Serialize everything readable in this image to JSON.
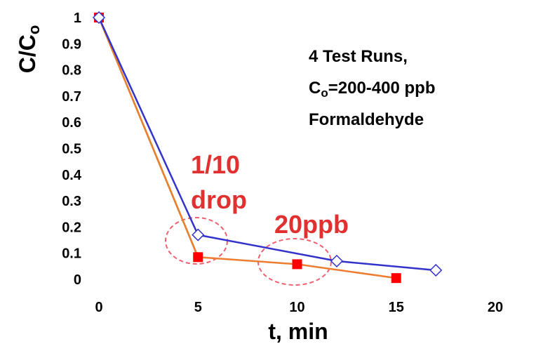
{
  "chart_data": {
    "type": "line",
    "xlabel": "t, min",
    "ylabel": "C/C",
    "ylabel_subscript": "o",
    "xlim": [
      0,
      20
    ],
    "ylim": [
      0,
      1
    ],
    "x_ticks": [
      0,
      5,
      10,
      15,
      20
    ],
    "y_ticks": [
      0,
      0.1,
      0.2,
      0.3,
      0.4,
      0.5,
      0.6,
      0.7,
      0.8,
      0.9,
      1
    ],
    "grid": false,
    "legend": "none",
    "series": [
      {
        "x": [
          0,
          5
        ],
        "y": [
          1,
          0.085
        ],
        "color": "#ffc000",
        "marker": "none"
      },
      {
        "x": [
          0,
          5
        ],
        "y": [
          1,
          0.085
        ],
        "color": "#70ad47",
        "marker": "circle"
      },
      {
        "x": [
          0,
          5,
          10,
          15
        ],
        "y": [
          1,
          0.085,
          0.058,
          0.005
        ],
        "color": "#ed7d31",
        "marker": "square",
        "marker_color": "#ff0000"
      },
      {
        "x": [
          0,
          5,
          12,
          17
        ],
        "y": [
          1,
          0.17,
          0.07,
          0.035
        ],
        "color": "#3333cc",
        "marker": "diamond-open"
      }
    ],
    "note_lines": [
      "4 Test Runs,",
      "=200-400 ppb",
      "Formaldehyde"
    ],
    "note_c": "C",
    "note_sub": "o",
    "annotations": [
      {
        "lines": [
          "1/10",
          "drop"
        ],
        "color": "#e03030"
      },
      {
        "lines": [
          "20ppb"
        ],
        "color": "#e03030"
      }
    ]
  }
}
